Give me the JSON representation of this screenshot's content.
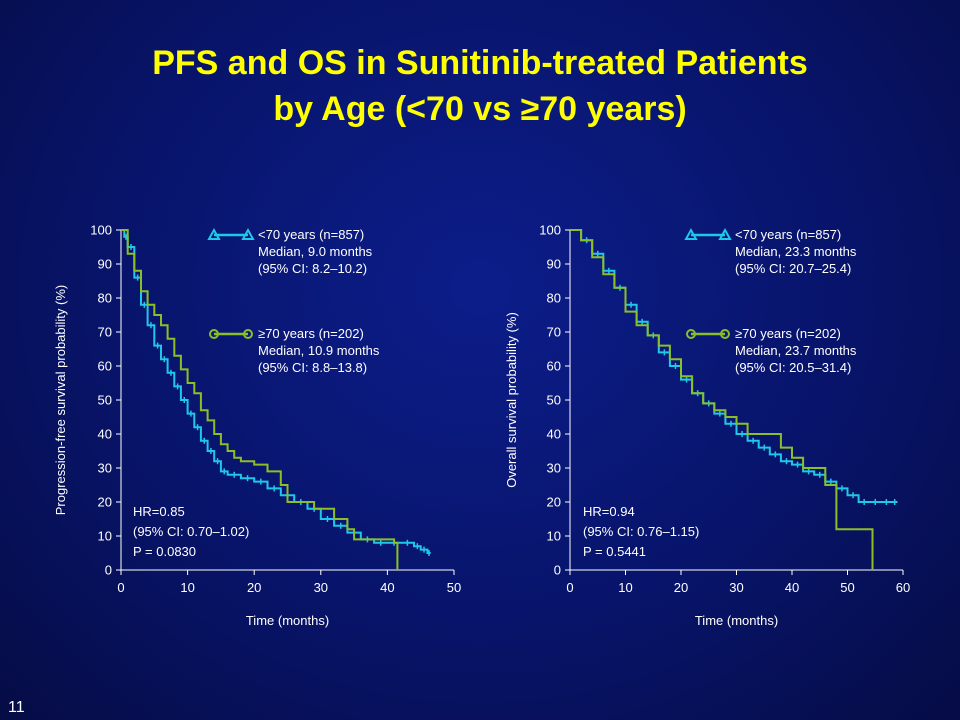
{
  "slide": {
    "title_line1": "PFS and OS in Sunitinib-treated Patients",
    "title_line2": "by Age (<70 vs ≥70 years)",
    "slide_number": "11"
  },
  "colors": {
    "background": "#08146a",
    "title": "#ffff00",
    "under70": "#1fc8e8",
    "over70": "#8cbf26",
    "text": "#ffffff"
  },
  "chart_data": [
    {
      "type": "line",
      "id": "pfs",
      "xlabel": "Time (months)",
      "ylabel": "Progression-free survival probability (%)",
      "xlim": [
        0,
        50
      ],
      "ylim": [
        0,
        100
      ],
      "xticks": [
        0,
        10,
        20,
        30,
        40,
        50
      ],
      "yticks": [
        0,
        10,
        20,
        30,
        40,
        50,
        60,
        70,
        80,
        90,
        100
      ],
      "grid": false,
      "legend_position": "top-right",
      "series": [
        {
          "name": "<70 years (n=857)",
          "line2": "Median, 9.0 months",
          "line3": "(95% CI: 8.2–10.2)",
          "marker": "triangle",
          "color": "#1fc8e8",
          "x": [
            0,
            0.5,
            1,
            2,
            3,
            4,
            5,
            6,
            7,
            8,
            9,
            10,
            11,
            12,
            13,
            14,
            15,
            16,
            18,
            20,
            22,
            24,
            26,
            28,
            30,
            32,
            34,
            36,
            38,
            40,
            42,
            44,
            45,
            46,
            46.5
          ],
          "y": [
            100,
            98,
            95,
            86,
            78,
            72,
            66,
            62,
            58,
            54,
            50,
            46,
            42,
            38,
            35,
            32,
            29,
            28,
            27,
            26,
            24,
            22,
            20,
            18,
            15,
            13,
            11,
            9,
            8,
            8,
            8,
            7,
            6,
            5,
            5
          ]
        },
        {
          "name": "≥70 years (n=202)",
          "line2": "Median, 10.9 months",
          "line3": "(95% CI: 8.8–13.8)",
          "marker": "circle",
          "color": "#8cbf26",
          "x": [
            0,
            1,
            2,
            3,
            4,
            5,
            6,
            7,
            8,
            9,
            10,
            11,
            12,
            13,
            14,
            15,
            16,
            17,
            18,
            20,
            22,
            24,
            25,
            28,
            29,
            32,
            34,
            35,
            38,
            39,
            41,
            41.5,
            41.5
          ],
          "y": [
            100,
            93,
            88,
            82,
            78,
            75,
            72,
            68,
            63,
            59,
            55,
            52,
            47,
            44,
            40,
            37,
            35,
            33,
            32,
            31,
            29,
            25,
            20,
            20,
            18,
            15,
            12,
            9,
            9,
            9,
            8,
            8,
            0
          ]
        }
      ],
      "annotation": {
        "line1": "HR=0.85",
        "line2": "(95% CI: 0.70–1.02)",
        "line3": "P = 0.0830"
      }
    },
    {
      "type": "line",
      "id": "os",
      "xlabel": "Time (months)",
      "ylabel": "Overall survival probability (%)",
      "xlim": [
        0,
        60
      ],
      "ylim": [
        0,
        100
      ],
      "xticks": [
        0,
        10,
        20,
        30,
        40,
        50,
        60
      ],
      "yticks": [
        0,
        10,
        20,
        30,
        40,
        50,
        60,
        70,
        80,
        90,
        100
      ],
      "grid": false,
      "legend_position": "top-right",
      "series": [
        {
          "name": "<70 years (n=857)",
          "line2": "Median, 23.3 months",
          "line3": "(95% CI: 20.7–25.4)",
          "marker": "triangle",
          "color": "#1fc8e8",
          "x": [
            0,
            2,
            4,
            6,
            8,
            10,
            12,
            14,
            16,
            18,
            20,
            22,
            24,
            26,
            28,
            30,
            32,
            34,
            36,
            38,
            40,
            42,
            44,
            46,
            48,
            50,
            52,
            54,
            56,
            58,
            59
          ],
          "y": [
            100,
            97,
            93,
            88,
            83,
            78,
            73,
            69,
            64,
            60,
            56,
            52,
            49,
            46,
            43,
            40,
            38,
            36,
            34,
            32,
            31,
            29,
            28,
            26,
            24,
            22,
            20,
            20,
            20,
            20,
            20
          ]
        },
        {
          "name": "≥70 years (n=202)",
          "line2": "Median, 23.7 months",
          "line3": "(95% CI: 20.5–31.4)",
          "marker": "circle",
          "color": "#8cbf26",
          "x": [
            0,
            2,
            4,
            6,
            8,
            10,
            12,
            14,
            16,
            18,
            20,
            22,
            24,
            26,
            28,
            30,
            32,
            35,
            37,
            38,
            40,
            42,
            45,
            46,
            48,
            48,
            50,
            54.5,
            54.5
          ],
          "y": [
            100,
            97,
            92,
            87,
            83,
            76,
            72,
            69,
            66,
            62,
            57,
            52,
            49,
            47,
            45,
            43,
            40,
            40,
            40,
            36,
            33,
            30,
            30,
            25,
            25,
            12,
            12,
            12,
            0
          ]
        }
      ],
      "annotation": {
        "line1": "HR=0.94",
        "line2": "(95% CI: 0.76–1.15)",
        "line3": "P = 0.5441"
      }
    }
  ]
}
